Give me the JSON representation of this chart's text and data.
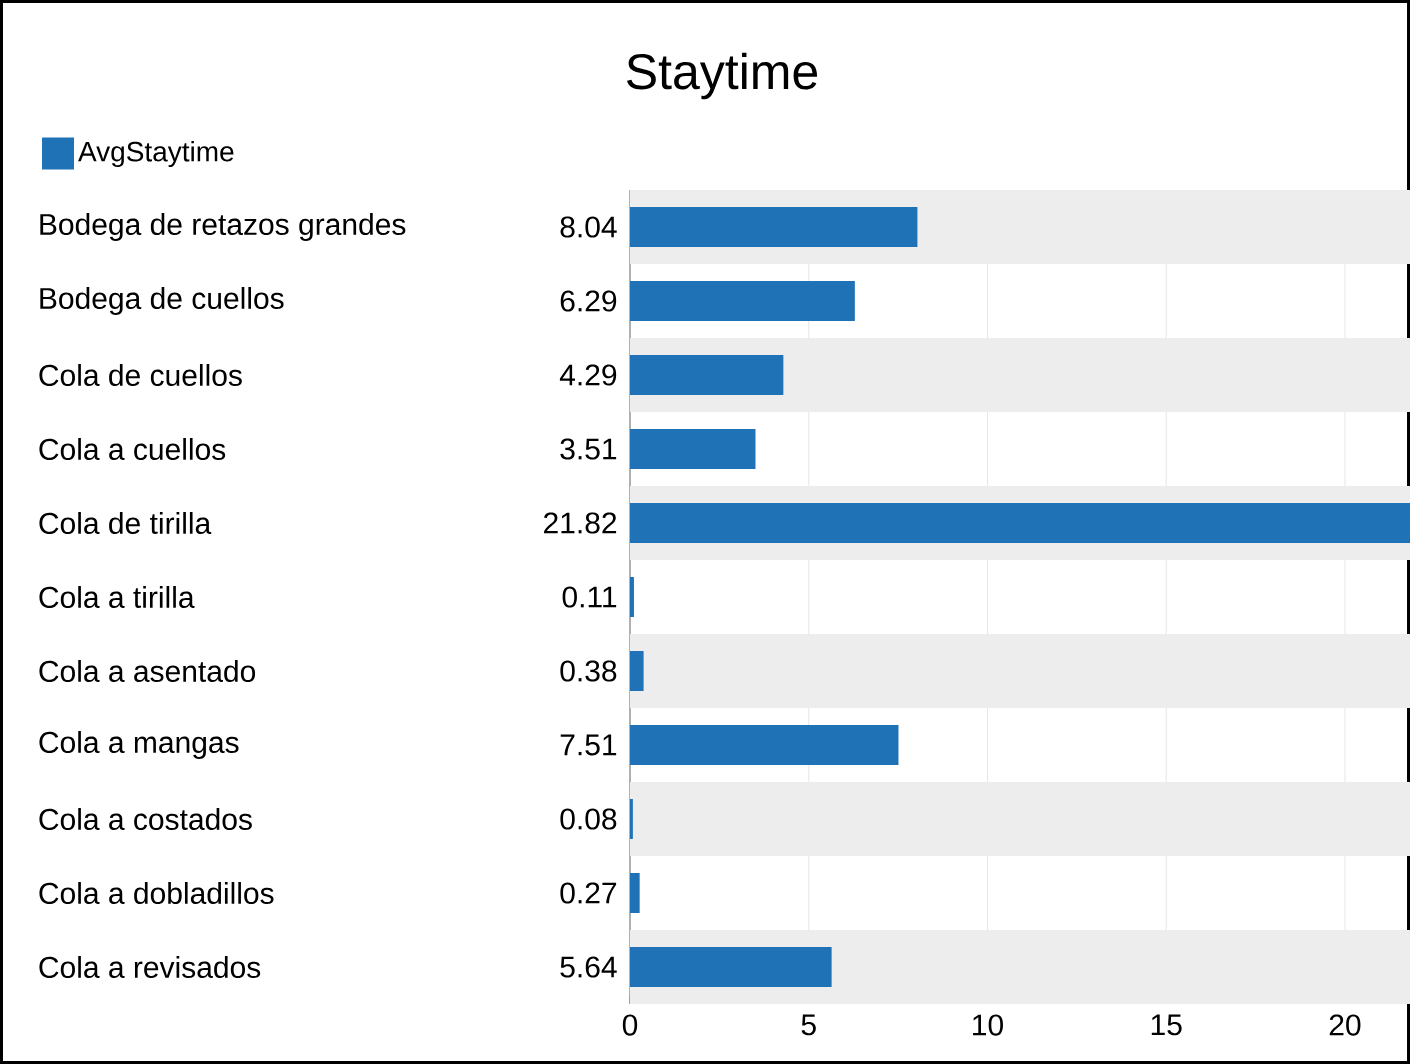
{
  "chart_data": {
    "type": "bar",
    "orientation": "horizontal",
    "title": "Staytime",
    "categories": [
      "Bodega de retazos grandes",
      "Bodega de cuellos",
      "Cola de cuellos",
      "Cola a cuellos",
      "Cola de tirilla",
      "Cola a tirilla",
      "Cola a asentado",
      "Cola a mangas",
      "Cola a costados",
      "Cola a dobladillos",
      "Cola a revisados"
    ],
    "series": [
      {
        "name": "AvgStaytime",
        "color": "#1f72b5",
        "values": [
          8.04,
          6.29,
          4.29,
          3.51,
          21.82,
          0.11,
          0.38,
          7.51,
          0.08,
          0.27,
          5.64
        ]
      }
    ],
    "xlim": [
      0,
      21.82
    ],
    "xticks": [
      0,
      5,
      10,
      15,
      20
    ],
    "grid": "x",
    "legend": "top left",
    "data_labels": true
  }
}
